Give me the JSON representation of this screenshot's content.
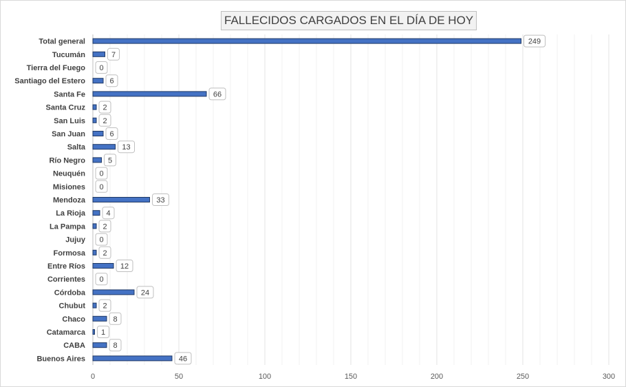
{
  "chart_data": {
    "type": "bar",
    "orientation": "horizontal",
    "title": "FALLECIDOS CARGADOS EN EL DÍA DE HOY",
    "categories": [
      "Total general",
      "Tucumán",
      "Tierra del Fuego",
      "Santiago del Estero",
      "Santa Fe",
      "Santa Cruz",
      "San Luis",
      "San Juan",
      "Salta",
      "Río Negro",
      "Neuquén",
      "Misiones",
      "Mendoza",
      "La Rioja",
      "La Pampa",
      "Jujuy",
      "Formosa",
      "Entre Ríos",
      "Corrientes",
      "Córdoba",
      "Chubut",
      "Chaco",
      "Catamarca",
      "CABA",
      "Buenos Aires"
    ],
    "values": [
      249,
      7,
      0,
      6,
      66,
      2,
      2,
      6,
      13,
      5,
      0,
      0,
      33,
      4,
      2,
      0,
      2,
      12,
      0,
      24,
      2,
      8,
      1,
      8,
      46
    ],
    "xlim": [
      0,
      300
    ],
    "xticks": [
      0,
      50,
      100,
      150,
      200,
      250,
      300
    ],
    "xlabel": "",
    "ylabel": "",
    "grid": "vertical",
    "legend": "none",
    "data_labels": true,
    "colors": {
      "bar_fill": "#4472c4",
      "bar_stroke": "#1f3864",
      "gridline": "#e3e3e3",
      "axis": "#bfbfbf",
      "label_box_border": "#bfbfbf"
    }
  }
}
